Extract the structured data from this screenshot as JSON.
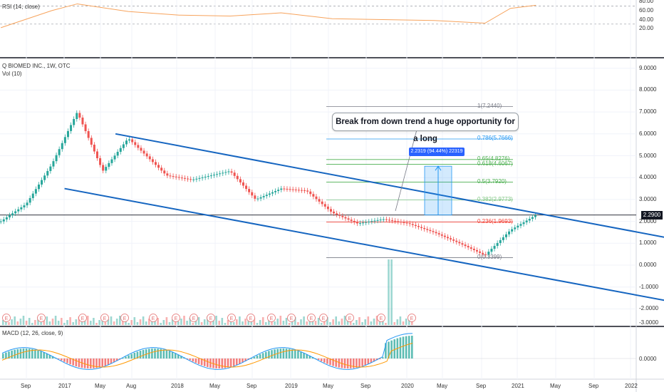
{
  "panes": {
    "rsi_title": "RSI (14, close)",
    "price_title": "Q BIOMED INC., 1W, OTC",
    "vol_title": "Vol (10)",
    "macd_title": "MACD (12, 26, close, 9)"
  },
  "annotation": {
    "callout": "Break from down trend a huge opportunity for a long",
    "measure": "2.2319 (94.44%) 22319"
  },
  "last_price": "2.2900",
  "axes": {
    "rsi_ticks": [
      "80.00",
      "60.00",
      "40.00",
      "20.00"
    ],
    "price_ticks": [
      "9.0000",
      "8.0000",
      "7.0000",
      "6.0000",
      "5.0000",
      "4.0000",
      "3.0000",
      "2.0000",
      "1.0000",
      "0.0000",
      "-1.0000",
      "-2.0000",
      "-3.0000"
    ],
    "macd_ticks": [
      "0.0000"
    ],
    "x_ticks": [
      "Sep",
      "2017",
      "May",
      "Aug",
      "2018",
      "May",
      "Sep",
      "2019",
      "May",
      "Sep",
      "2020",
      "May",
      "Sep",
      "2021",
      "May",
      "Sep",
      "2022"
    ]
  },
  "fib_levels": [
    {
      "label": "1(7.2440)",
      "color": "#787b86"
    },
    {
      "label": "0.786(5.7666)",
      "color": "#2196f3"
    },
    {
      "label": "0.65(4.8276)",
      "color": "#4caf50"
    },
    {
      "label": "0.618(4.6067)",
      "color": "#4caf50"
    },
    {
      "label": "0.5(3.7920)",
      "color": "#4caf50"
    },
    {
      "label": "0.382(2.9773)",
      "color": "#81c784"
    },
    {
      "label": "0.236(1.9693)",
      "color": "#f44336"
    },
    {
      "label": "0(0.3399)",
      "color": "#787b86"
    }
  ],
  "chart_data": {
    "type": "candlestick",
    "series": [
      {
        "name": "Q BIOMED INC., 1W, OTC",
        "x": [
          "2016-07",
          "2016-09",
          "2016-11",
          "2017-01",
          "2017-03",
          "2017-05",
          "2017-08",
          "2017-10",
          "2018-01",
          "2018-03",
          "2018-05",
          "2018-07",
          "2018-09",
          "2018-11",
          "2019-01",
          "2019-03",
          "2019-05",
          "2019-07",
          "2019-09",
          "2019-11",
          "2020-01"
        ],
        "close": [
          2.0,
          2.8,
          4.6,
          7.0,
          4.3,
          5.8,
          4.1,
          3.9,
          4.3,
          3.0,
          3.5,
          3.4,
          2.4,
          1.9,
          2.1,
          1.9,
          1.5,
          1.0,
          0.45,
          1.6,
          2.29
        ]
      },
      {
        "name": "Vol (10)"
      },
      {
        "name": "RSI (14, close)",
        "x": [
          "2016-07",
          "2016-11",
          "2017-01",
          "2017-05",
          "2017-09",
          "2018-01",
          "2018-05",
          "2018-09",
          "2019-01",
          "2019-05",
          "2019-09",
          "2019-11",
          "2020-01"
        ],
        "values": [
          22,
          60,
          75,
          58,
          50,
          48,
          55,
          42,
          40,
          38,
          32,
          65,
          72
        ]
      },
      {
        "name": "MACD (12, 26, close, 9)"
      }
    ],
    "ylim": [
      -3,
      9
    ],
    "rsi_ylim": [
      20,
      80
    ],
    "last_price": 2.29,
    "fibonacci": [
      7.244,
      5.7666,
      4.8276,
      4.6067,
      3.792,
      2.9773,
      1.9693,
      0.3399
    ],
    "channel": {
      "upper": {
        "x": [
          "2017-04",
          "2022-01"
        ],
        "y": [
          6.0,
          -0.25
        ]
      },
      "lower": {
        "x": [
          "2016-12",
          "2021-11"
        ],
        "y": [
          3.5,
          -2.9
        ]
      }
    },
    "measure": {
      "value": 2.2319,
      "percent": 94.44
    }
  }
}
